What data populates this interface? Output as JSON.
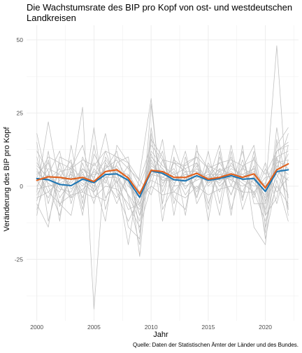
{
  "chart_data": {
    "type": "line",
    "title": "Die Wachstumsrate des BIP pro Kopf von ost- und westdeutschen Landkreisen",
    "title_lines": [
      "Die Wachstumsrate des BIP pro Kopf von ost- und westdeutschen",
      "Landkreisen"
    ],
    "xlabel": "Jahr",
    "ylabel": "Veränderung des BIP pro Kopf",
    "caption": "Quelle: Daten der Statistischen Ämter der Länder und des Bundes.",
    "xlim": [
      1999.1,
      2022.9
    ],
    "ylim": [
      -46,
      55
    ],
    "x_ticks": [
      2000,
      2005,
      2010,
      2015,
      2020
    ],
    "y_ticks": [
      -25,
      0,
      25,
      50
    ],
    "grid": true,
    "x": [
      2000,
      2001,
      2002,
      2003,
      2004,
      2005,
      2006,
      2007,
      2008,
      2009,
      2010,
      2011,
      2012,
      2013,
      2014,
      2015,
      2016,
      2017,
      2018,
      2019,
      2020,
      2021,
      2022
    ],
    "series": [
      {
        "role": "west-mean",
        "color": "#E0601C",
        "values": [
          2.0,
          3.2,
          3.0,
          2.4,
          3.0,
          1.6,
          5.0,
          5.6,
          2.8,
          -2.6,
          5.4,
          5.0,
          3.0,
          3.0,
          4.4,
          2.4,
          3.0,
          4.2,
          3.0,
          4.2,
          -0.6,
          5.6,
          7.6
        ]
      },
      {
        "role": "east-mean",
        "color": "#1F77B4",
        "values": [
          2.6,
          2.2,
          0.6,
          0.2,
          2.4,
          1.2,
          4.0,
          4.2,
          2.0,
          -3.8,
          5.2,
          4.4,
          2.2,
          1.8,
          3.6,
          2.0,
          2.6,
          3.6,
          2.4,
          2.6,
          -1.8,
          5.0,
          5.6
        ]
      },
      {
        "role": "districts",
        "color": "#BEBEBE",
        "values": [
          10,
          -6,
          8,
          -4,
          6,
          3,
          9,
          4,
          -3,
          -12,
          12,
          7,
          4,
          6,
          8,
          1,
          5,
          7,
          3,
          6,
          -10,
          12,
          15
        ]
      },
      {
        "role": "districts",
        "color": "#BEBEBE",
        "values": [
          -5,
          9,
          -7,
          5,
          -4,
          6,
          1,
          10,
          6,
          2,
          -3,
          9,
          -2,
          3,
          -1,
          6,
          0,
          4,
          1,
          -2,
          3,
          4,
          -3
        ]
      },
      {
        "role": "districts",
        "color": "#BEBEBE",
        "values": [
          5,
          1,
          -2,
          7,
          2,
          -1,
          12,
          2,
          -8,
          -6,
          8,
          3,
          6,
          -1,
          5,
          3,
          8,
          2,
          6,
          4,
          -6,
          9,
          6
        ]
      },
      {
        "role": "districts",
        "color": "#BEBEBE",
        "values": [
          -8,
          4,
          12,
          -6,
          8,
          -3,
          -5,
          8,
          10,
          -16,
          20,
          -2,
          9,
          6,
          -4,
          8,
          2,
          10,
          -5,
          12,
          -14,
          6,
          18
        ]
      },
      {
        "role": "districts",
        "color": "#BEBEBE",
        "values": [
          15,
          -12,
          3,
          9,
          -8,
          11,
          4,
          -6,
          4,
          -10,
          3,
          12,
          -6,
          8,
          10,
          -6,
          6,
          -3,
          9,
          -3,
          8,
          -6,
          9
        ]
      },
      {
        "role": "districts",
        "color": "#BEBEBE",
        "values": [
          0,
          6,
          4,
          0,
          4,
          0,
          7,
          6,
          0,
          -4,
          9,
          2,
          2,
          4,
          2,
          4,
          1,
          6,
          4,
          1,
          -3,
          7,
          4
        ]
      },
      {
        "role": "districts",
        "color": "#BEBEBE",
        "values": [
          6,
          -2,
          2,
          4,
          0,
          5,
          3,
          3,
          -3,
          -8,
          4,
          6,
          0,
          1,
          7,
          0,
          4,
          3,
          -2,
          7,
          -5,
          3,
          11
        ]
      },
      {
        "role": "districts",
        "color": "#BEBEBE",
        "values": [
          -3,
          4,
          -1,
          -2,
          5,
          -6,
          8,
          1,
          7,
          0,
          11,
          1,
          5,
          -3,
          3,
          5,
          -2,
          8,
          2,
          0,
          1,
          10,
          -8
        ]
      },
      {
        "role": "districts",
        "color": "#BEBEBE",
        "values": [
          18,
          0,
          -10,
          6,
          14,
          -2,
          6,
          12,
          -4,
          -20,
          28,
          -6,
          14,
          2,
          8,
          -8,
          10,
          0,
          12,
          -6,
          -6,
          14,
          20
        ]
      },
      {
        "role": "districts",
        "color": "#BEBEBE",
        "values": [
          -2,
          22,
          0,
          -4,
          -1,
          2,
          18,
          -2,
          -12,
          -4,
          0,
          16,
          -10,
          10,
          -4,
          12,
          -6,
          14,
          -4,
          10,
          -18,
          2,
          -12
        ]
      },
      {
        "role": "districts",
        "color": "#BEBEBE",
        "values": [
          8,
          2,
          6,
          -1,
          3,
          4,
          5,
          7,
          1,
          -7,
          7,
          4,
          3,
          2,
          6,
          1,
          3,
          5,
          2,
          3,
          -4,
          8,
          9
        ]
      },
      {
        "role": "districts",
        "color": "#BEBEBE",
        "values": [
          -1,
          0,
          1,
          3,
          1,
          -2,
          3,
          5,
          4,
          -2,
          4,
          3,
          2,
          4,
          3,
          3,
          2,
          3,
          3,
          5,
          0,
          5,
          2
        ]
      },
      {
        "role": "districts",
        "color": "#BEBEBE",
        "values": [
          4,
          8,
          -4,
          2,
          27,
          -42,
          10,
          4,
          2,
          -6,
          6,
          2,
          4,
          0,
          2,
          4,
          4,
          2,
          0,
          2,
          -2,
          48,
          -8
        ]
      },
      {
        "role": "districts",
        "color": "#BEBEBE",
        "values": [
          -6,
          -14,
          10,
          8,
          -10,
          14,
          -4,
          2,
          -20,
          4,
          30,
          -8,
          0,
          12,
          -6,
          2,
          14,
          -8,
          6,
          14,
          -10,
          -4,
          14
        ]
      },
      {
        "role": "districts",
        "color": "#BEBEBE",
        "values": [
          12,
          5,
          -6,
          -10,
          10,
          2,
          -12,
          14,
          8,
          -24,
          16,
          10,
          -4,
          -8,
          12,
          6,
          -10,
          12,
          -8,
          4,
          -16,
          20,
          -4
        ]
      },
      {
        "role": "districts",
        "color": "#BEBEBE",
        "values": [
          2,
          -4,
          5,
          6,
          -2,
          8,
          2,
          -4,
          4,
          -2,
          2,
          0,
          8,
          5,
          -2,
          7,
          5,
          -3,
          7,
          -4,
          6,
          -2,
          3
        ]
      },
      {
        "role": "districts",
        "color": "#BEBEBE",
        "values": [
          -10,
          12,
          -12,
          14,
          -6,
          20,
          -8,
          6,
          -14,
          -18,
          18,
          -12,
          10,
          -10,
          14,
          -12,
          12,
          -10,
          14,
          -14,
          -20,
          16,
          -10
        ]
      },
      {
        "role": "districts",
        "color": "#BEBEBE",
        "values": [
          7,
          3,
          3,
          1,
          6,
          1,
          6,
          9,
          2,
          -10,
          10,
          6,
          1,
          5,
          5,
          2,
          6,
          4,
          4,
          6,
          -8,
          10,
          12
        ]
      },
      {
        "role": "districts",
        "color": "#BEBEBE",
        "values": [
          -4,
          -2,
          -6,
          -3,
          -2,
          -4,
          0,
          -1,
          -6,
          -14,
          0,
          -3,
          -2,
          -4,
          0,
          -3,
          -1,
          0,
          -2,
          -2,
          -12,
          0,
          -6
        ]
      },
      {
        "role": "districts",
        "color": "#BEBEBE",
        "values": [
          3,
          10,
          8,
          6,
          9,
          7,
          12,
          10,
          8,
          2,
          14,
          9,
          8,
          7,
          10,
          6,
          8,
          9,
          7,
          9,
          4,
          12,
          14
        ]
      }
    ]
  }
}
